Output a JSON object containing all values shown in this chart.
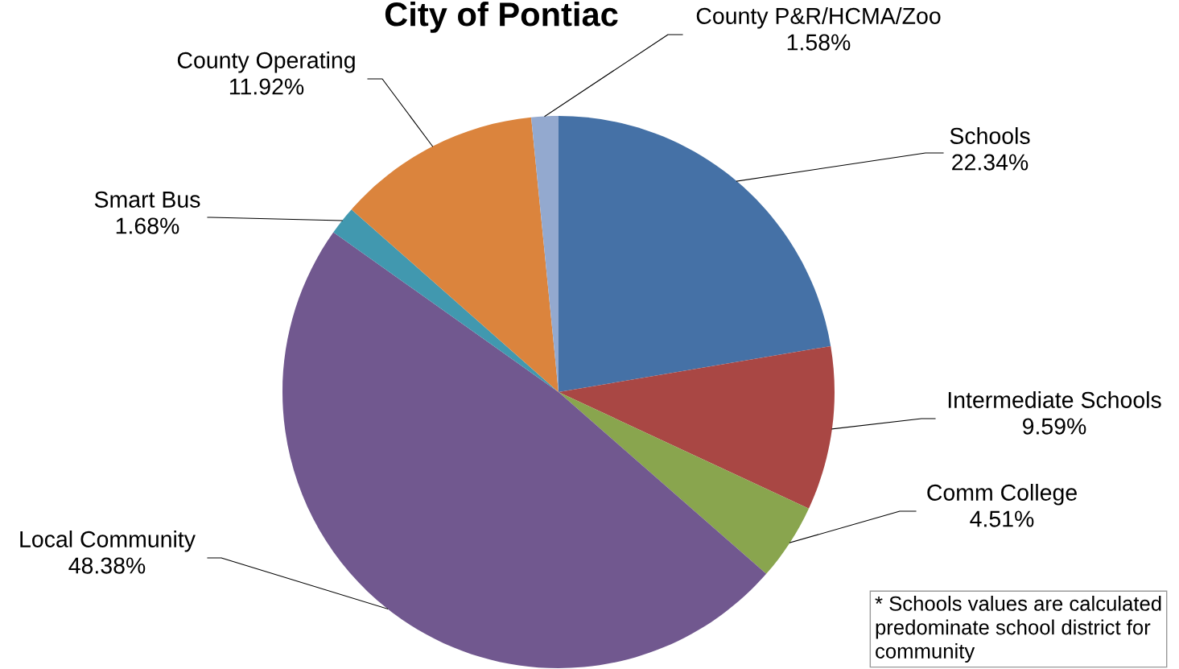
{
  "chart_data": {
    "type": "pie",
    "title": "City of Pontiac",
    "categories": [
      "Schools",
      "Intermediate Schools",
      "Comm College",
      "Local Community",
      "Smart Bus",
      "County Operating",
      "County P&R/HCMA/Zoo"
    ],
    "values": [
      22.34,
      9.59,
      4.51,
      48.38,
      1.68,
      11.92,
      1.58
    ],
    "colors": [
      "#4571a6",
      "#a94744",
      "#89a54e",
      "#71588f",
      "#4198af",
      "#db843d",
      "#93a9cf"
    ],
    "value_labels": [
      "22.34%",
      "9.59%",
      "4.51%",
      "48.38%",
      "1.68%",
      "11.92%",
      "1.58%"
    ],
    "annotations": [
      "* Schools values are calculated predominate school district for community"
    ]
  }
}
